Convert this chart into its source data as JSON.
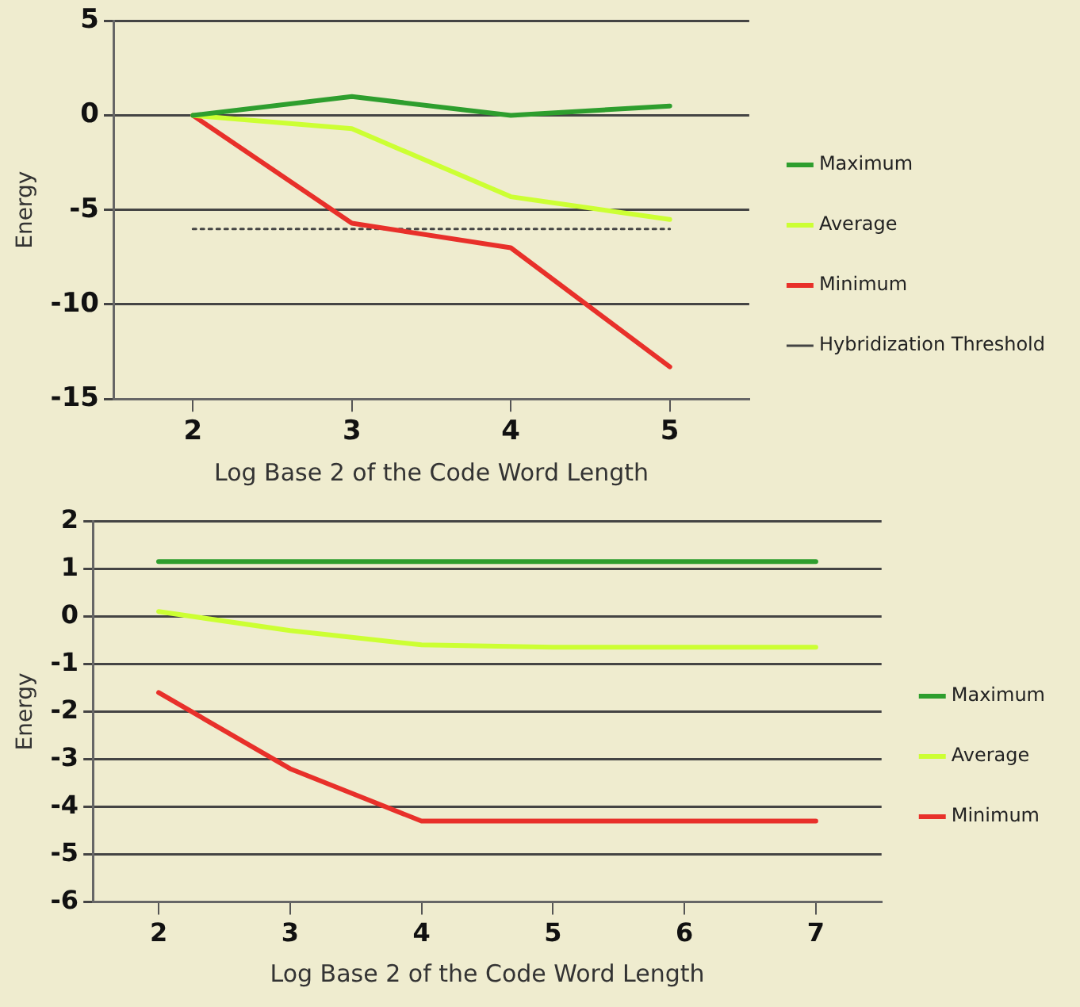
{
  "chart_data": [
    {
      "type": "line",
      "xlabel": "Log Base 2 of the Code Word Length",
      "ylabel": "Energy",
      "x": [
        2,
        3,
        4,
        5
      ],
      "xlim": [
        1.5,
        5.5
      ],
      "xticks": [
        2,
        3,
        4,
        5
      ],
      "ylim": [
        -15,
        5
      ],
      "yticks": [
        -15,
        -10,
        -5,
        0,
        5
      ],
      "grid": "y",
      "legend": "right",
      "marker": "none",
      "series": [
        {
          "name": "Maximum",
          "color": "#2e9e2e",
          "values": [
            0,
            1,
            0,
            0.5
          ]
        },
        {
          "name": "Average",
          "color": "#ccff33",
          "values": [
            0,
            -0.7,
            -4.3,
            -5.5
          ]
        },
        {
          "name": "Minimum",
          "color": "#e8302a",
          "values": [
            0,
            -5.7,
            -7,
            -13.3
          ]
        },
        {
          "name": "Hybridization Threshold",
          "color": "#444444",
          "line_style": "dotted",
          "values": [
            -6,
            -6,
            -6,
            -6
          ]
        }
      ]
    },
    {
      "type": "line",
      "xlabel": "Log Base 2 of the Code Word Length",
      "ylabel": "Energy",
      "x": [
        2,
        3,
        4,
        5,
        6,
        7
      ],
      "xlim": [
        1.5,
        7.5
      ],
      "xticks": [
        2,
        3,
        4,
        5,
        6,
        7
      ],
      "ylim": [
        -6,
        2
      ],
      "yticks": [
        -6,
        -5,
        -4,
        -3,
        -2,
        -1,
        0,
        1,
        2
      ],
      "grid": "y",
      "legend": "right",
      "marker": "none",
      "series": [
        {
          "name": "Maximum",
          "color": "#2e9e2e",
          "values": [
            1.15,
            1.15,
            1.15,
            1.15,
            1.15,
            1.15
          ]
        },
        {
          "name": "Average",
          "color": "#ccff33",
          "values": [
            0.1,
            -0.3,
            -0.6,
            -0.65,
            -0.65,
            -0.65
          ]
        },
        {
          "name": "Minimum",
          "color": "#e8302a",
          "values": [
            -1.6,
            -3.2,
            -4.3,
            -4.3,
            -4.3,
            -4.3
          ]
        }
      ]
    }
  ]
}
